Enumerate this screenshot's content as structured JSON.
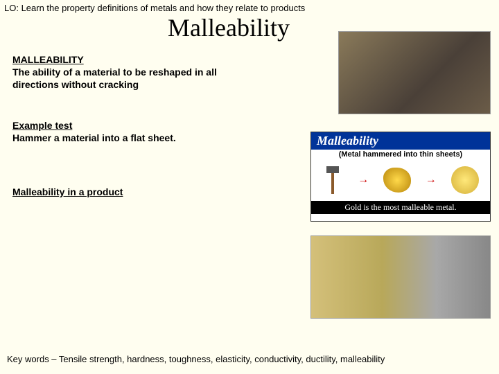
{
  "learning_objective": "LO: Learn the property definitions of metals and how they relate to products",
  "title": "Malleability",
  "sections": {
    "definition": {
      "heading": "MALLEABILITY",
      "body": "The ability of a material to be reshaped in all directions without cracking"
    },
    "example_test": {
      "heading": "Example test",
      "body": "Hammer a material into a flat sheet."
    },
    "product": {
      "heading": "Malleability in a product"
    }
  },
  "infographic": {
    "header": "Malleability",
    "subtitle": "(Metal hammered into thin sheets)",
    "footer": "Gold is the most malleable metal."
  },
  "keywords": "Key words – Tensile strength, hardness, toughness, elasticity, conductivity, ductility, malleability"
}
